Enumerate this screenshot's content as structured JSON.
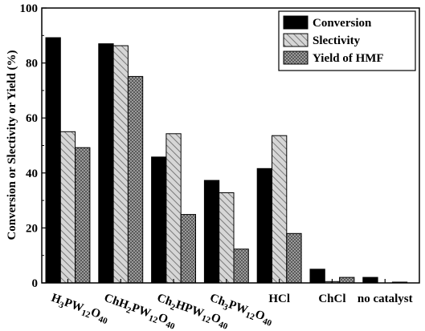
{
  "chart_data": {
    "type": "bar",
    "ylabel": "Conversion or Slectivity or Yield (%)",
    "xlabel": "",
    "ylim": [
      0,
      100
    ],
    "yticks": [
      0,
      20,
      40,
      60,
      80,
      100
    ],
    "grid": false,
    "legend_position": "top-right",
    "categories": [
      "H3PW12O40",
      "ChH2PW12O40",
      "Ch2HPW12O40",
      "Ch3PW12O40",
      "HCl",
      "ChCl",
      "no catalyst"
    ],
    "category_labels": [
      [
        {
          "t": "H"
        },
        {
          "t": "3",
          "s": 1
        },
        {
          "t": "PW"
        },
        {
          "t": "12",
          "s": 1
        },
        {
          "t": "O"
        },
        {
          "t": "40",
          "s": 1
        }
      ],
      [
        {
          "t": "ChH"
        },
        {
          "t": "2",
          "s": 1
        },
        {
          "t": "PW"
        },
        {
          "t": "12",
          "s": 1
        },
        {
          "t": "O"
        },
        {
          "t": "40",
          "s": 1
        }
      ],
      [
        {
          "t": "Ch"
        },
        {
          "t": "2",
          "s": 1
        },
        {
          "t": "HPW"
        },
        {
          "t": "12",
          "s": 1
        },
        {
          "t": "O"
        },
        {
          "t": "40",
          "s": 1
        }
      ],
      [
        {
          "t": "Ch"
        },
        {
          "t": "3",
          "s": 1
        },
        {
          "t": "PW"
        },
        {
          "t": "12",
          "s": 1
        },
        {
          "t": "O"
        },
        {
          "t": "40",
          "s": 1
        }
      ],
      [
        {
          "t": "HCl"
        }
      ],
      [
        {
          "t": "ChCl"
        }
      ],
      [
        {
          "t": "no catalyst"
        }
      ]
    ],
    "series": [
      {
        "name": "Conversion",
        "values": [
          89.2,
          87.0,
          45.8,
          37.3,
          41.6,
          5.0,
          2.0
        ],
        "fill": "solid",
        "color": "#000000"
      },
      {
        "name": "Slectivity",
        "values": [
          55.0,
          86.3,
          54.3,
          32.8,
          53.6,
          0.5,
          0.0
        ],
        "fill": "diagonal-hatch",
        "color": "#bdbdbd"
      },
      {
        "name": "Yield of HMF",
        "values": [
          49.2,
          75.1,
          24.9,
          12.3,
          18.0,
          2.0,
          0.3
        ],
        "fill": "crosshatch",
        "color": "#8a8a8a"
      }
    ]
  }
}
